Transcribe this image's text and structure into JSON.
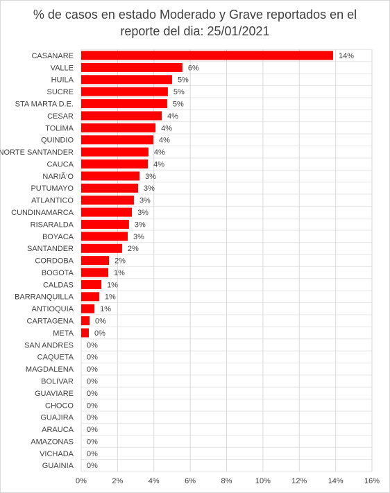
{
  "chart_data": {
    "type": "bar",
    "orientation": "horizontal",
    "title": [
      "% de casos en estado Moderado y Grave reportados en el",
      "reporte del dia:  25/01/2021"
    ],
    "categories": [
      "CASANARE",
      "VALLE",
      "HUILA",
      "SUCRE",
      "STA MARTA D.E.",
      "CESAR",
      "TOLIMA",
      "QUINDIO",
      "NORTE SANTANDER",
      "CAUCA",
      "NARIÃ‘O",
      "PUTUMAYO",
      "ATLANTICO",
      "CUNDINAMARCA",
      "RISARALDA",
      "BOYACA",
      "SANTANDER",
      "CORDOBA",
      "BOGOTA",
      "CALDAS",
      "BARRANQUILLA",
      "ANTIOQUIA",
      "CARTAGENA",
      "META",
      "SAN ANDRES",
      "CAQUETA",
      "MAGDALENA",
      "BOLIVAR",
      "GUAVIARE",
      "CHOCO",
      "GUAJIRA",
      "ARAUCA",
      "AMAZONAS",
      "VICHADA",
      "GUAINIA"
    ],
    "values": [
      13.86,
      5.57,
      5.0,
      4.77,
      4.73,
      4.43,
      4.09,
      3.97,
      3.7,
      3.67,
      3.21,
      3.13,
      2.9,
      2.79,
      2.63,
      2.56,
      2.25,
      1.53,
      1.49,
      1.11,
      0.99,
      0.73,
      0.46,
      0.42,
      0,
      0,
      0,
      0,
      0,
      0,
      0,
      0,
      0,
      0,
      0
    ],
    "value_labels": [
      "14%",
      "6%",
      "5%",
      "5%",
      "5%",
      "4%",
      "4%",
      "4%",
      "4%",
      "4%",
      "3%",
      "3%",
      "3%",
      "3%",
      "3%",
      "3%",
      "2%",
      "2%",
      "1%",
      "1%",
      "1%",
      "1%",
      "0%",
      "0%",
      "0%",
      "0%",
      "0%",
      "0%",
      "0%",
      "0%",
      "0%",
      "0%",
      "0%",
      "0%",
      "0%"
    ],
    "color": "#ff0000",
    "xlim": [
      0,
      16
    ],
    "xticks": [
      {
        "value": 0,
        "label": "0%"
      },
      {
        "value": 2,
        "label": "2%"
      },
      {
        "value": 4,
        "label": "4%"
      },
      {
        "value": 6,
        "label": "6%"
      },
      {
        "value": 8,
        "label": "8%"
      },
      {
        "value": 10,
        "label": "10%"
      },
      {
        "value": 12,
        "label": "12%"
      },
      {
        "value": 14,
        "label": "14%"
      },
      {
        "value": 16,
        "label": "16%"
      }
    ],
    "grid": true
  }
}
